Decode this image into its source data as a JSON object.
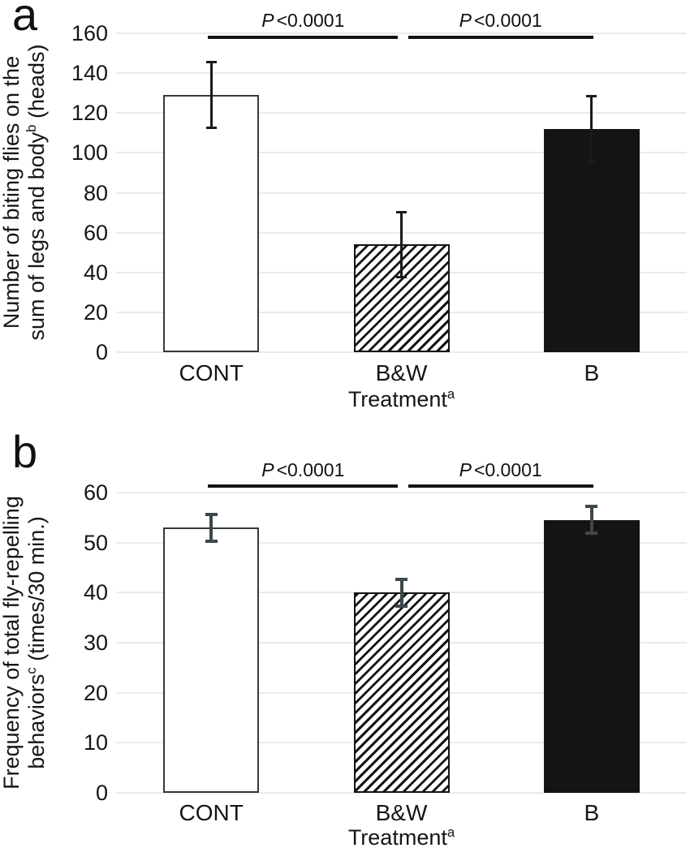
{
  "figure": {
    "panels": [
      {
        "letter": "a"
      },
      {
        "letter": "b"
      }
    ]
  },
  "chart_data": [
    {
      "type": "bar",
      "panel": "a",
      "title": "",
      "ylabel_lines": [
        {
          "pre": "Number of biting flies on the"
        },
        {
          "pre": "sum of legs and body",
          "sup": "b",
          "post": " (heads)"
        }
      ],
      "xlabel": {
        "pre": "Treatment",
        "sup": "a"
      },
      "categories": [
        "CONT",
        "B&W",
        "B"
      ],
      "values": [
        129,
        54,
        112
      ],
      "errors_up": [
        17,
        17,
        17
      ],
      "errors_down": [
        17,
        17,
        17
      ],
      "bar_patterns": [
        "white",
        "hatched",
        "black"
      ],
      "ylim": [
        0,
        160
      ],
      "ytick_step": 20,
      "grid": true,
      "legend": "none",
      "significance": [
        {
          "from": 0,
          "to": 1,
          "p_italic": "P",
          "p_text": "<0.0001"
        },
        {
          "from": 1,
          "to": 2,
          "p_italic": "P",
          "p_text": "<0.0001"
        }
      ],
      "error_bar_color": "#1a1a1a",
      "bar_black_color": "#141414",
      "gridline_color": "#e8ebeb"
    },
    {
      "type": "bar",
      "panel": "b",
      "title": "",
      "ylabel_lines": [
        {
          "pre": "Frequency of total fly-repelling"
        },
        {
          "pre": "behaviors",
          "sup": "c",
          "post": " (times/30 min.)"
        }
      ],
      "xlabel": {
        "pre": "Treatment",
        "sup": "a"
      },
      "categories": [
        "CONT",
        "B&W",
        "B"
      ],
      "values": [
        53,
        40,
        54.5
      ],
      "errors_up": [
        3,
        3,
        3
      ],
      "errors_down": [
        3,
        3,
        3
      ],
      "bar_patterns": [
        "white",
        "hatched",
        "black"
      ],
      "ylim": [
        0,
        60
      ],
      "ytick_step": 10,
      "grid": true,
      "legend": "none",
      "significance": [
        {
          "from": 0,
          "to": 1,
          "p_italic": "P",
          "p_text": "<0.0001"
        },
        {
          "from": 1,
          "to": 2,
          "p_italic": "P",
          "p_text": "<0.0001"
        }
      ],
      "error_bar_color": "#3e474c",
      "bar_black_color": "#141414",
      "gridline_color": "#e8ebeb"
    }
  ]
}
